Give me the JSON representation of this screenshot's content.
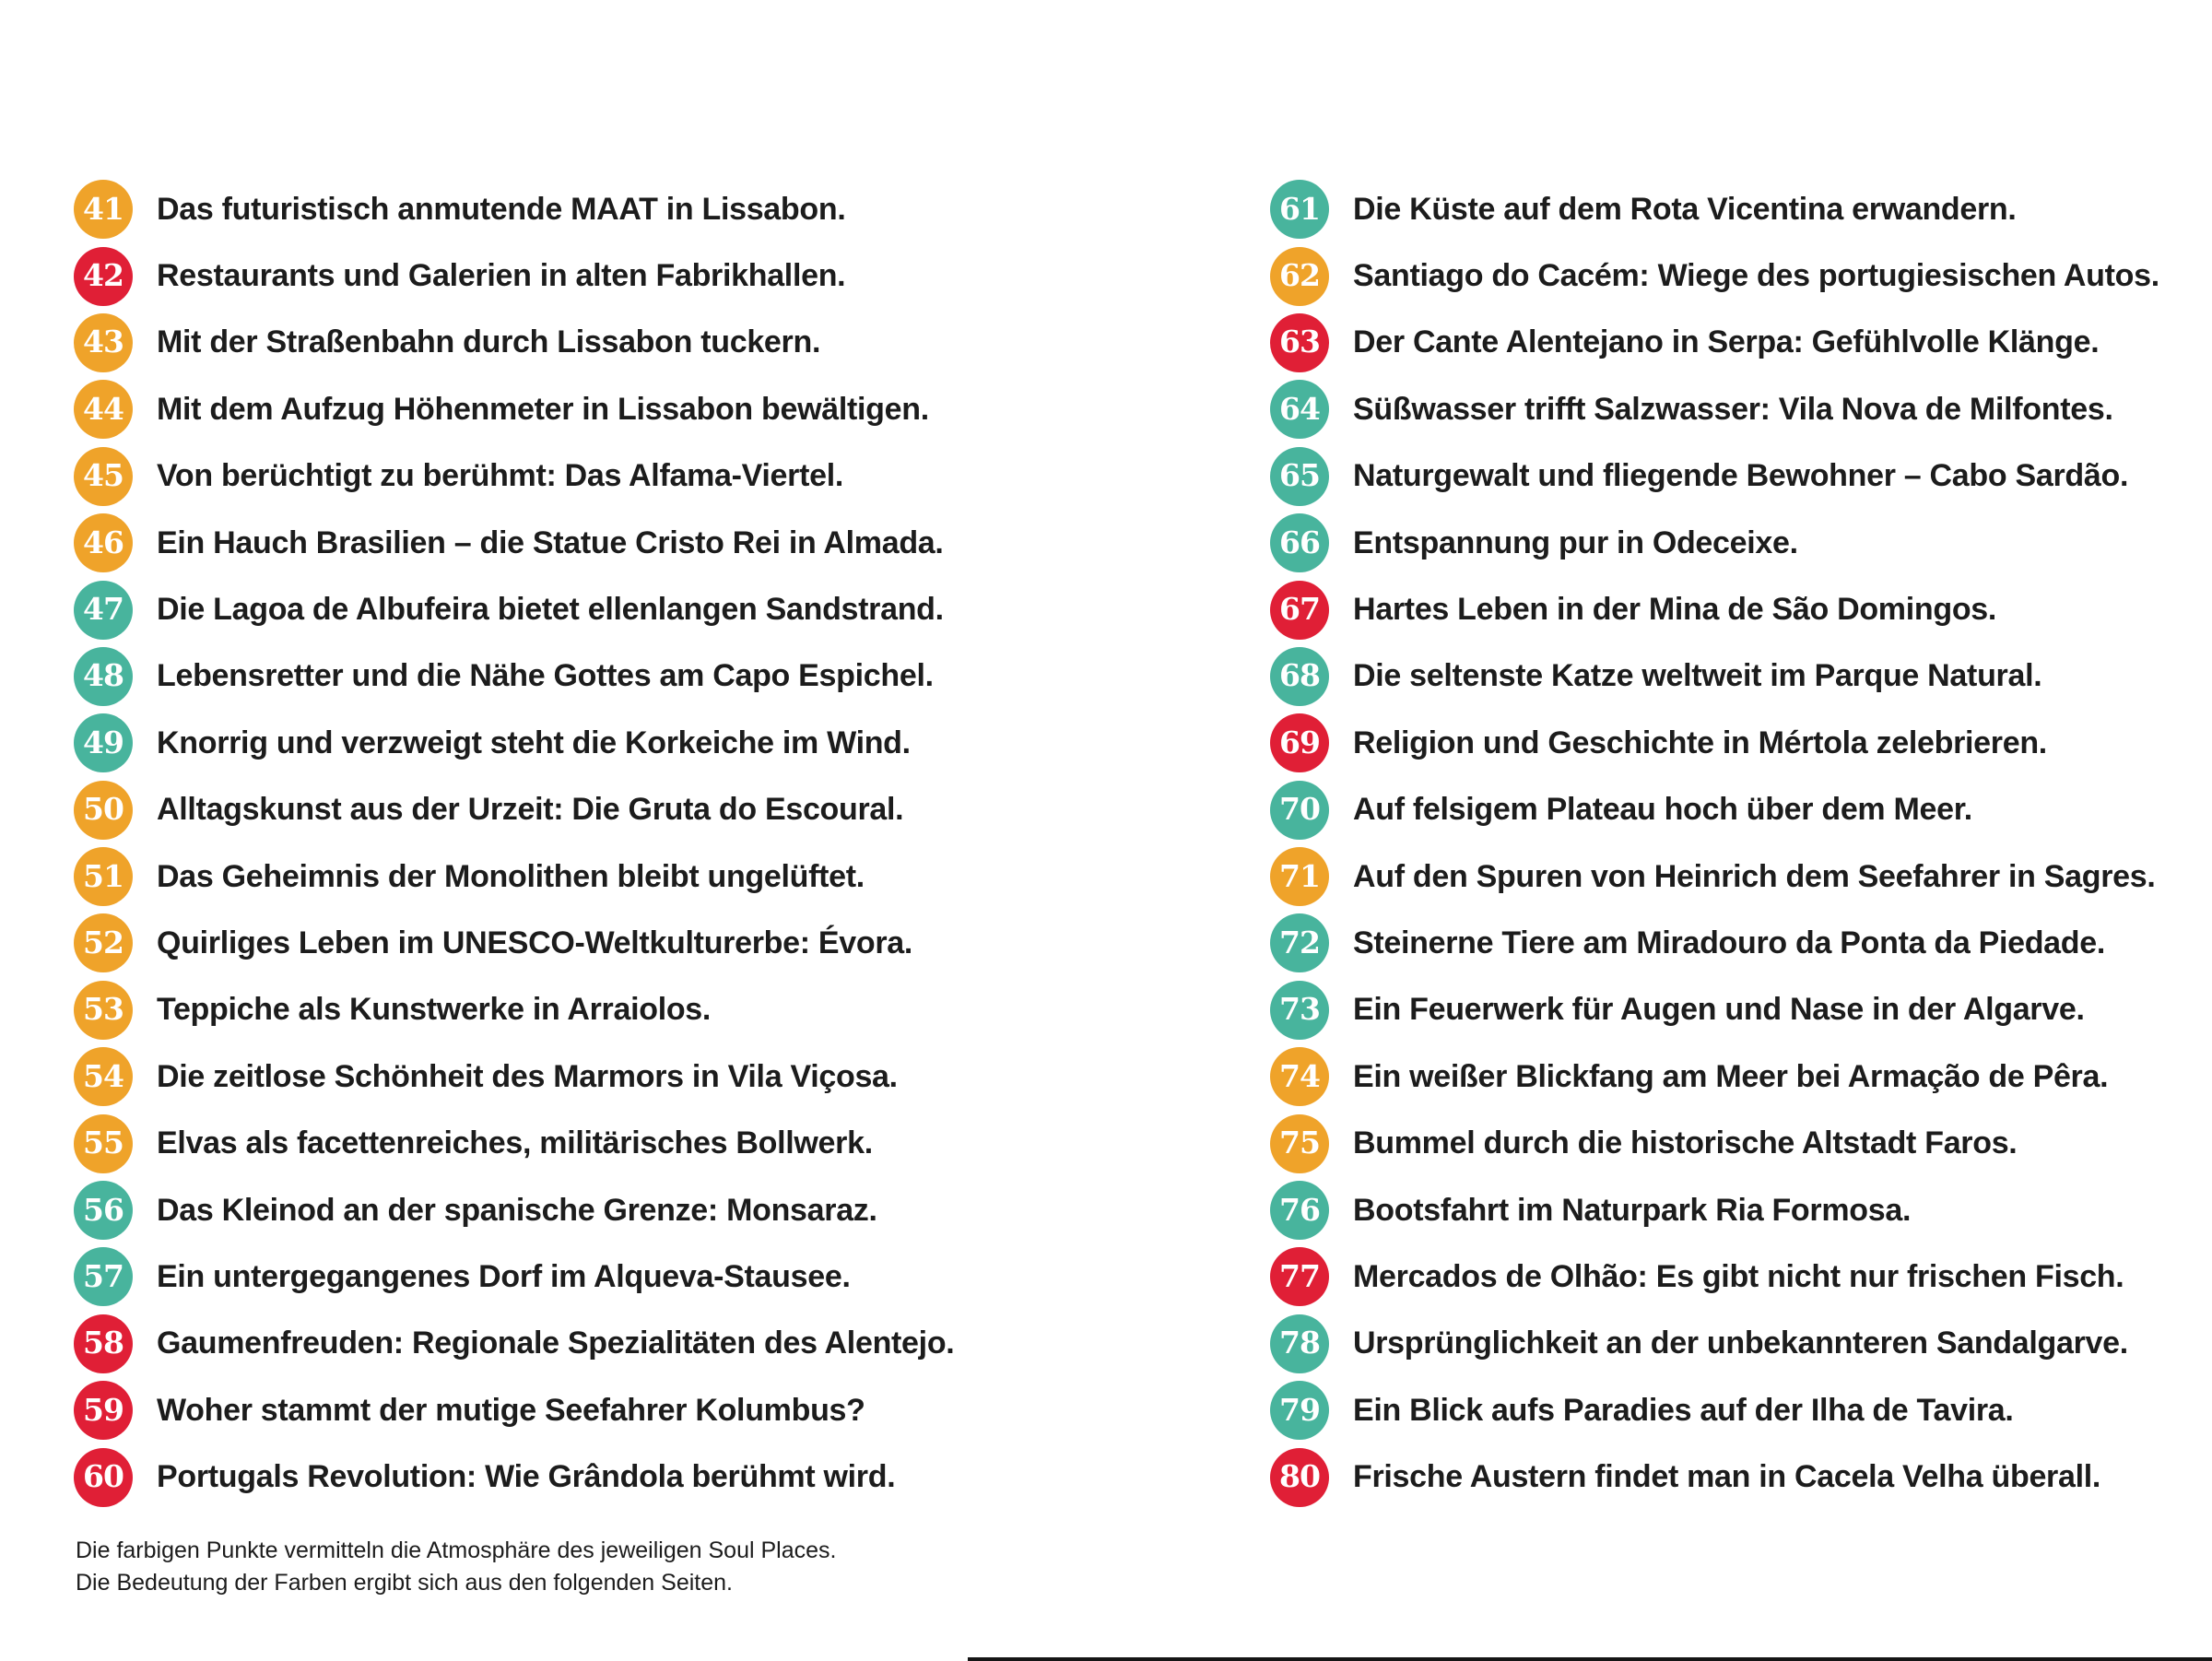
{
  "palette": {
    "orange": "#EFA32A",
    "red": "#E01F36",
    "teal": "#48B49D"
  },
  "columns": [
    {
      "items": [
        {
          "number": "41",
          "color": "orange",
          "text": "Das futuristisch anmutende MAAT in Lissabon."
        },
        {
          "number": "42",
          "color": "red",
          "text": "Restaurants und Galerien in alten Fabrikhallen."
        },
        {
          "number": "43",
          "color": "orange",
          "text": "Mit der Straßenbahn durch Lissabon tuckern."
        },
        {
          "number": "44",
          "color": "orange",
          "text": "Mit dem Aufzug Höhenmeter in Lissabon bewältigen."
        },
        {
          "number": "45",
          "color": "orange",
          "text": "Von berüchtigt zu berühmt: Das Alfama-Viertel."
        },
        {
          "number": "46",
          "color": "orange",
          "text": "Ein Hauch Brasilien – die Statue Cristo Rei in Almada."
        },
        {
          "number": "47",
          "color": "teal",
          "text": "Die Lagoa de Albufeira bietet ellenlangen Sandstrand."
        },
        {
          "number": "48",
          "color": "teal",
          "text": "Lebensretter und die Nähe Gottes am Capo Espichel."
        },
        {
          "number": "49",
          "color": "teal",
          "text": "Knorrig und verzweigt steht die Korkeiche im Wind."
        },
        {
          "number": "50",
          "color": "orange",
          "text": "Alltagskunst aus der Urzeit: Die Gruta do Escoural."
        },
        {
          "number": "51",
          "color": "orange",
          "text": "Das Geheimnis der Monolithen bleibt ungelüftet."
        },
        {
          "number": "52",
          "color": "orange",
          "text": "Quirliges Leben im UNESCO-Weltkulturerbe: Évora."
        },
        {
          "number": "53",
          "color": "orange",
          "text": "Teppiche als Kunstwerke in Arraiolos."
        },
        {
          "number": "54",
          "color": "orange",
          "text": "Die zeitlose Schönheit des Marmors in Vila Viçosa."
        },
        {
          "number": "55",
          "color": "orange",
          "text": "Elvas als facettenreiches, militärisches Bollwerk."
        },
        {
          "number": "56",
          "color": "teal",
          "text": "Das Kleinod an der spanische Grenze: Monsaraz."
        },
        {
          "number": "57",
          "color": "teal",
          "text": "Ein untergegangenes Dorf im Alqueva-Stausee."
        },
        {
          "number": "58",
          "color": "red",
          "text": "Gaumenfreuden: Regionale Spezialitäten des Alentejo."
        },
        {
          "number": "59",
          "color": "red",
          "text": "Woher stammt der mutige Seefahrer Kolumbus?"
        },
        {
          "number": "60",
          "color": "red",
          "text": "Portugals Revolution: Wie Grândola berühmt wird."
        }
      ]
    },
    {
      "items": [
        {
          "number": "61",
          "color": "teal",
          "text": "Die Küste auf dem Rota Vicentina erwandern."
        },
        {
          "number": "62",
          "color": "orange",
          "text": "Santiago do Cacém: Wiege des portugiesischen Autos."
        },
        {
          "number": "63",
          "color": "red",
          "text": "Der Cante Alentejano in Serpa: Gefühlvolle Klänge."
        },
        {
          "number": "64",
          "color": "teal",
          "text": "Süßwasser trifft Salzwasser: Vila Nova de Milfontes."
        },
        {
          "number": "65",
          "color": "teal",
          "text": "Naturgewalt und fliegende Bewohner – Cabo Sardão."
        },
        {
          "number": "66",
          "color": "teal",
          "text": "Entspannung pur in Odeceixe."
        },
        {
          "number": "67",
          "color": "red",
          "text": "Hartes Leben in der Mina de São Domingos."
        },
        {
          "number": "68",
          "color": "teal",
          "text": "Die seltenste Katze weltweit im Parque Natural."
        },
        {
          "number": "69",
          "color": "red",
          "text": "Religion und Geschichte in Mértola zelebrieren."
        },
        {
          "number": "70",
          "color": "teal",
          "text": "Auf felsigem Plateau hoch über dem Meer."
        },
        {
          "number": "71",
          "color": "orange",
          "text": "Auf den Spuren von Heinrich dem Seefahrer in Sagres."
        },
        {
          "number": "72",
          "color": "teal",
          "text": "Steinerne Tiere am Miradouro da Ponta da Piedade."
        },
        {
          "number": "73",
          "color": "teal",
          "text": "Ein Feuerwerk für Augen und Nase in der Algarve."
        },
        {
          "number": "74",
          "color": "orange",
          "text": "Ein weißer Blickfang am Meer bei Armação de Pêra."
        },
        {
          "number": "75",
          "color": "orange",
          "text": "Bummel durch die historische Altstadt Faros."
        },
        {
          "number": "76",
          "color": "teal",
          "text": "Bootsfahrt im Naturpark Ria Formosa."
        },
        {
          "number": "77",
          "color": "red",
          "text": "Mercados de Olhão: Es gibt nicht nur frischen Fisch."
        },
        {
          "number": "78",
          "color": "teal",
          "text": "Ursprünglichkeit an der unbekannteren Sandalgarve."
        },
        {
          "number": "79",
          "color": "teal",
          "text": "Ein Blick aufs Paradies auf der Ilha de Tavira."
        },
        {
          "number": "80",
          "color": "red",
          "text": "Frische Austern findet man in Cacela Velha überall."
        }
      ]
    }
  ],
  "footnote": {
    "line1": "Die farbigen Punkte vermitteln die Atmosphäre des jeweiligen Soul Places.",
    "line2": "Die Bedeutung der Farben ergibt sich aus den folgenden Seiten."
  }
}
